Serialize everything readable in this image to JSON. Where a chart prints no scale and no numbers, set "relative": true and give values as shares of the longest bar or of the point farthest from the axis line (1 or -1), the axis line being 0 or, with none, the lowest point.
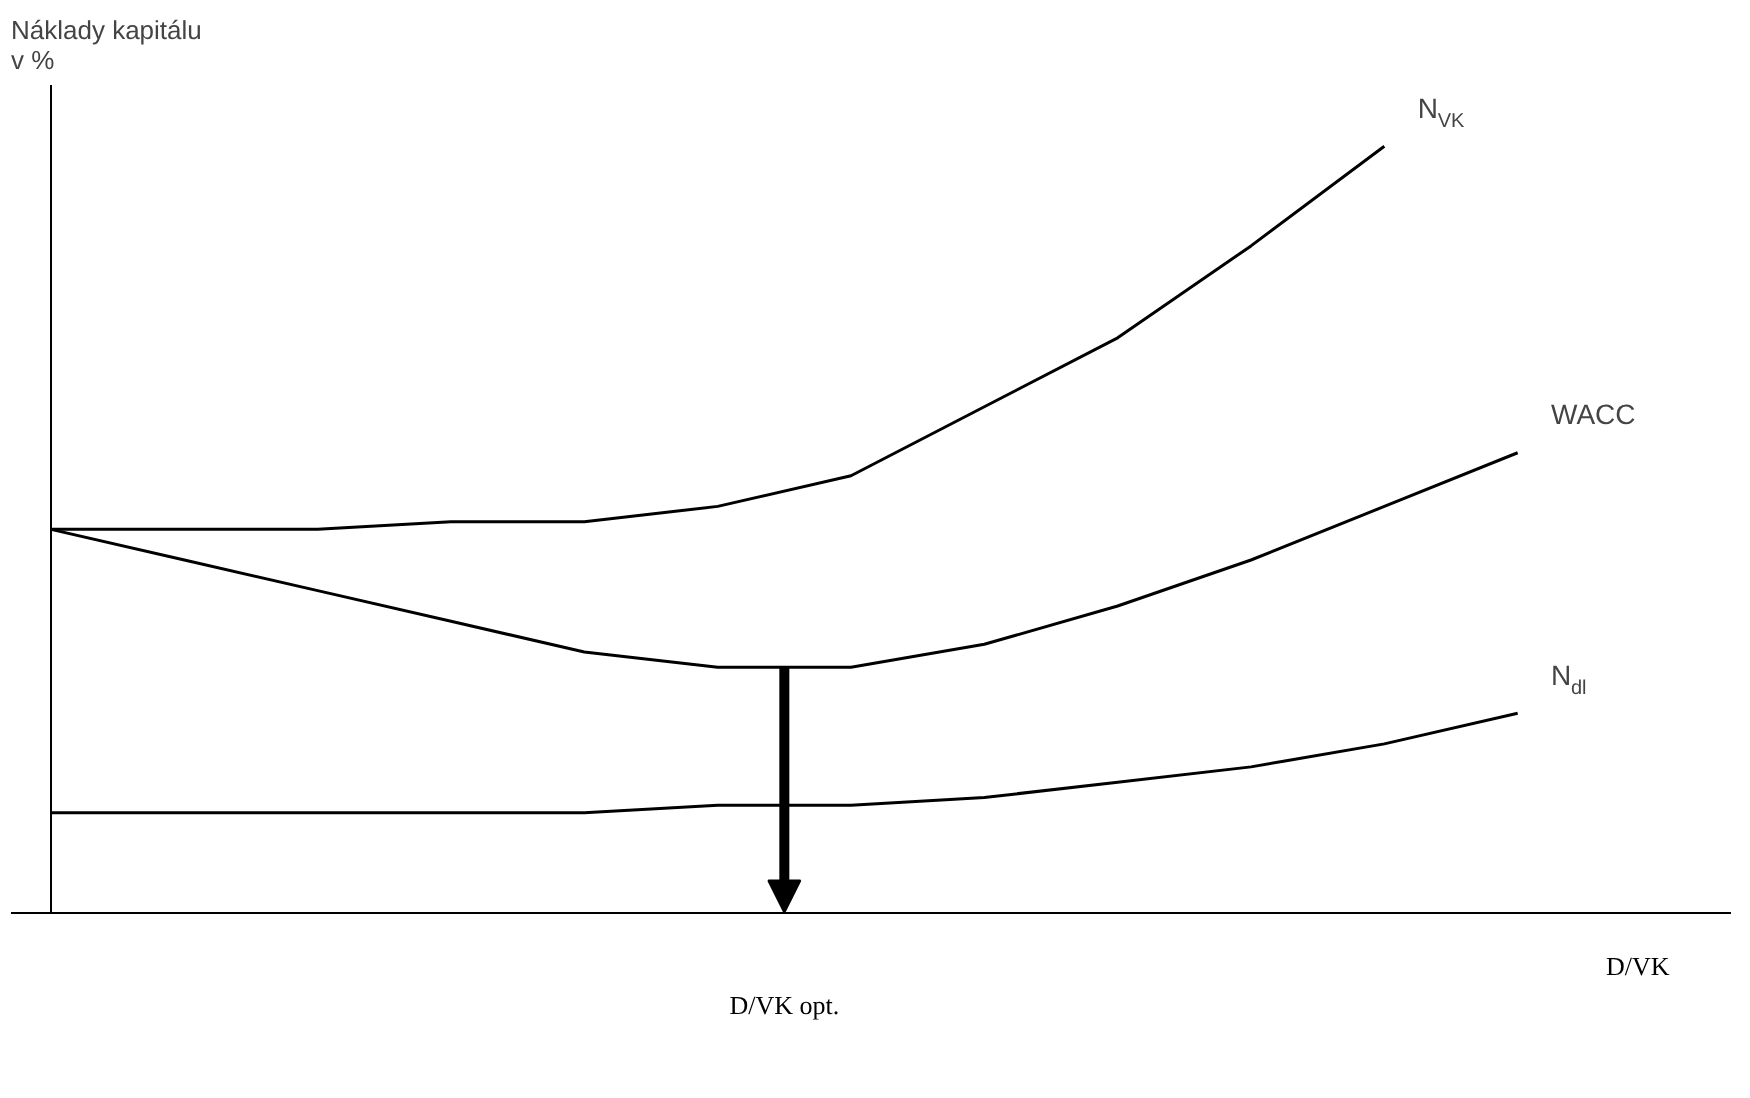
{
  "chart_data": {
    "type": "line",
    "relative": true,
    "ylabel": "Náklady kapitálu\nv %",
    "xlabel": "D/VK",
    "marker": "none",
    "line_style": "solid",
    "categories": [
      null,
      null,
      null,
      null,
      null,
      null,
      null,
      null,
      null,
      null,
      null,
      null
    ],
    "series": [
      {
        "name": "N$_{VK}$",
        "color": "#000000",
        "values": [
          0.5,
          0.5,
          0.5,
          0.51,
          0.51,
          0.53,
          0.57,
          0.66,
          0.75,
          0.87,
          1.0,
          null
        ]
      },
      {
        "name": "WACC",
        "color": "#000000",
        "values": [
          0.5,
          0.46,
          0.42,
          0.38,
          0.34,
          0.32,
          0.32,
          0.35,
          0.4,
          0.46,
          0.53,
          0.6
        ]
      },
      {
        "name": "N$_{dl}$",
        "color": "#000000",
        "values": [
          0.13,
          0.13,
          0.13,
          0.13,
          0.13,
          0.14,
          0.14,
          0.15,
          0.17,
          0.19,
          0.22,
          0.26
        ]
      }
    ],
    "annotations": [
      "D/VK opt."
    ]
  }
}
